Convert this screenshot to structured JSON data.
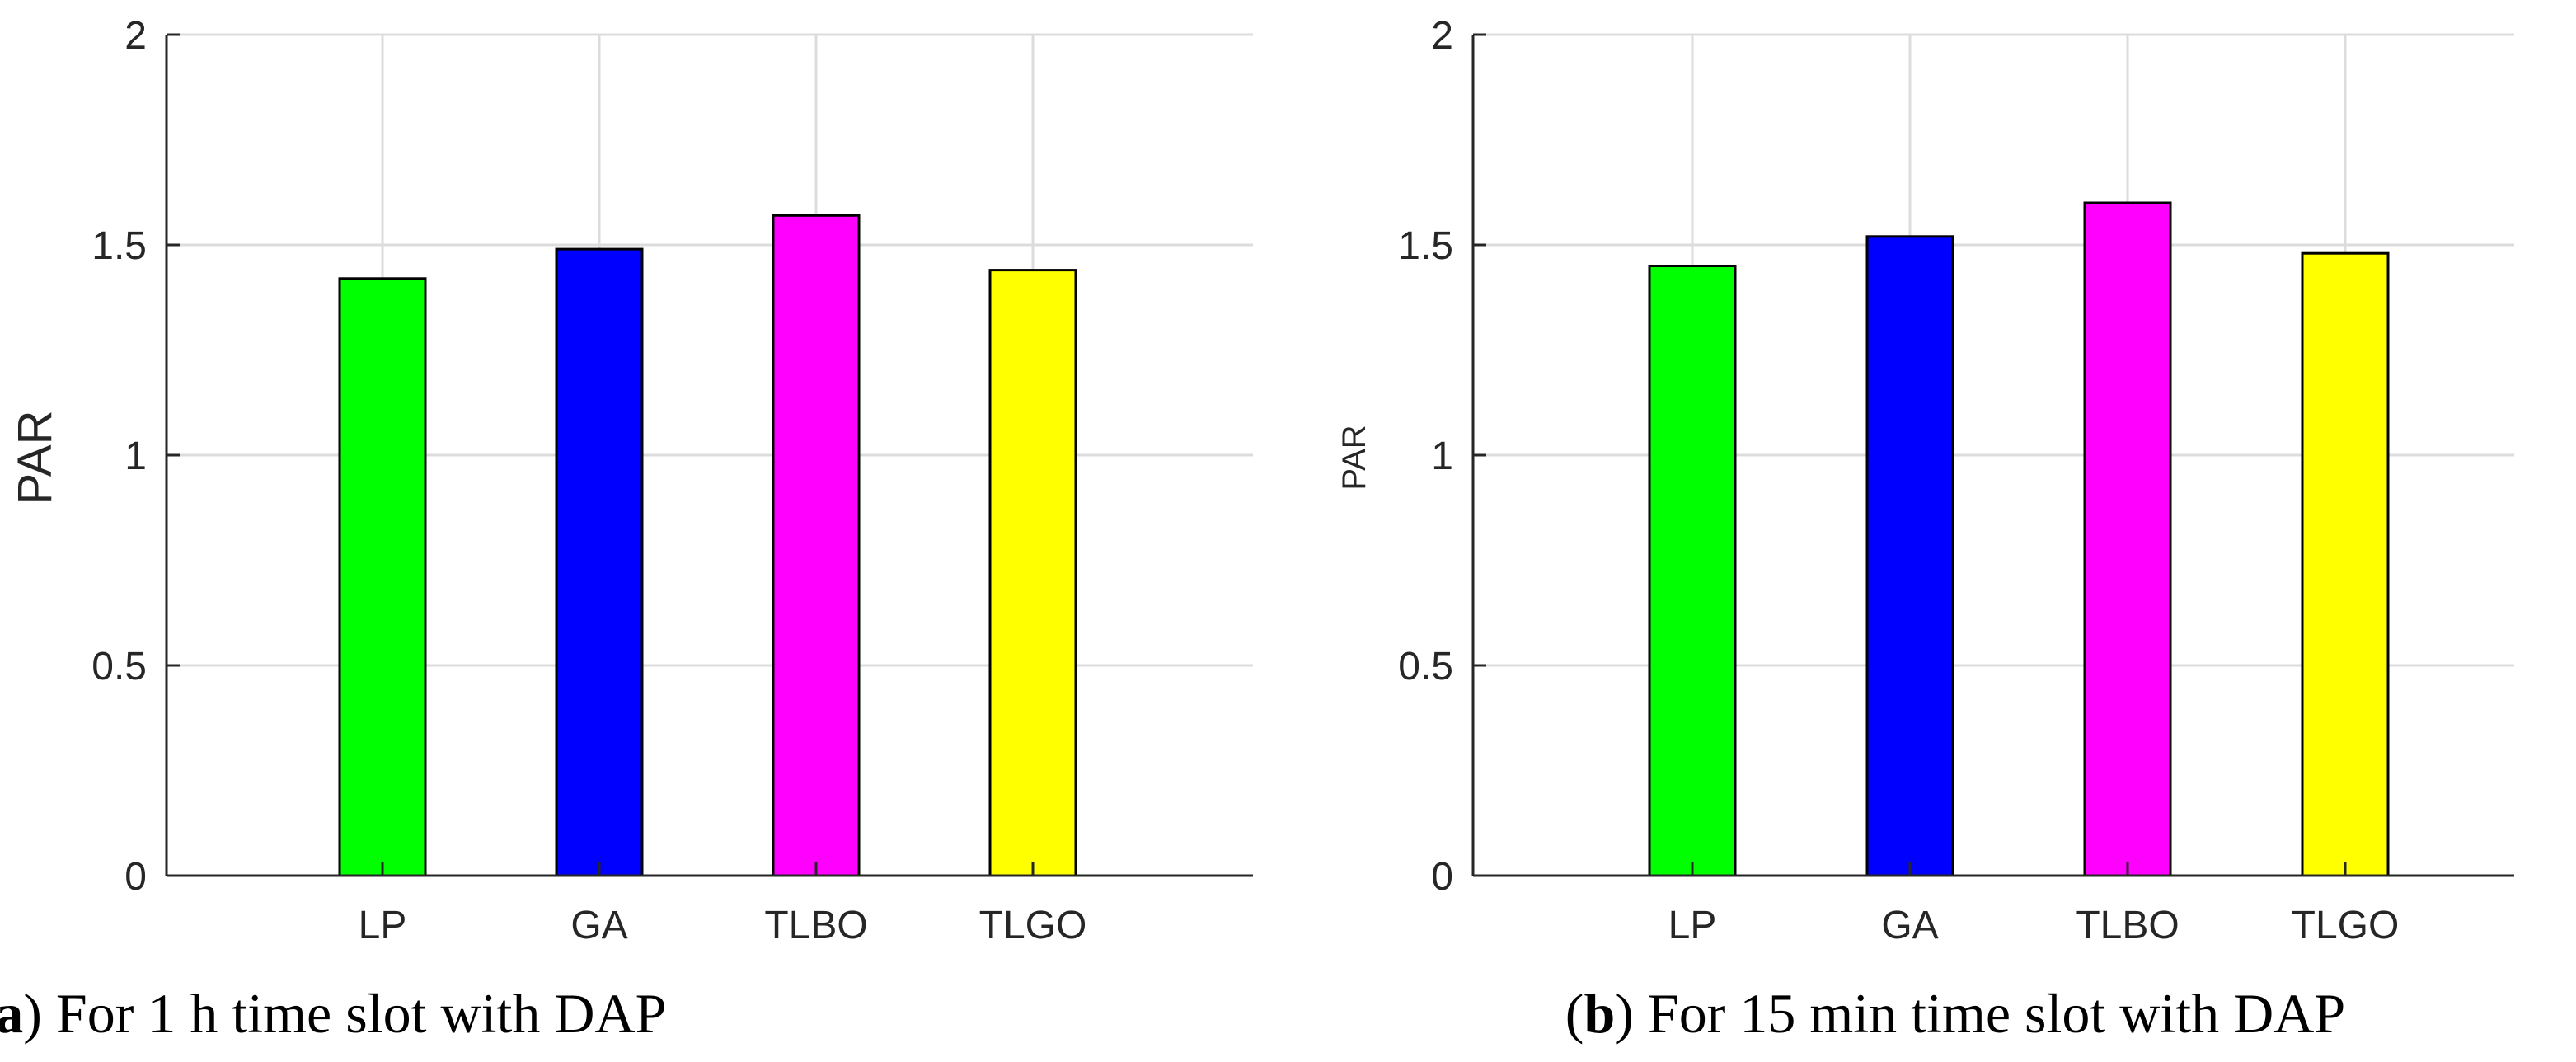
{
  "chart_data": [
    {
      "type": "bar",
      "panel_label": "a",
      "caption": "For 1 h time slot with DAP",
      "categories": [
        "LP",
        "GA",
        "TLBO",
        "TLGO"
      ],
      "values": [
        1.42,
        1.49,
        1.57,
        1.44
      ],
      "colors": [
        "#00ff00",
        "#0000ff",
        "#ff00ff",
        "#ffff00"
      ],
      "ylabel": "PAR",
      "xlabel": "",
      "ylim": [
        0,
        2
      ],
      "yticks": [
        "0",
        "0.5",
        "1",
        "1.5",
        "2"
      ],
      "grid": true
    },
    {
      "type": "bar",
      "panel_label": "b",
      "caption": "For 15 min time slot with DAP",
      "categories": [
        "LP",
        "GA",
        "TLBO",
        "TLGO"
      ],
      "values": [
        1.45,
        1.52,
        1.6,
        1.48
      ],
      "colors": [
        "#00ff00",
        "#0000ff",
        "#ff00ff",
        "#ffff00"
      ],
      "ylabel": "PAR",
      "xlabel": "",
      "ylim": [
        0,
        2
      ],
      "yticks": [
        "0",
        "0.5",
        "1",
        "1.5",
        "2"
      ],
      "grid": true
    }
  ]
}
